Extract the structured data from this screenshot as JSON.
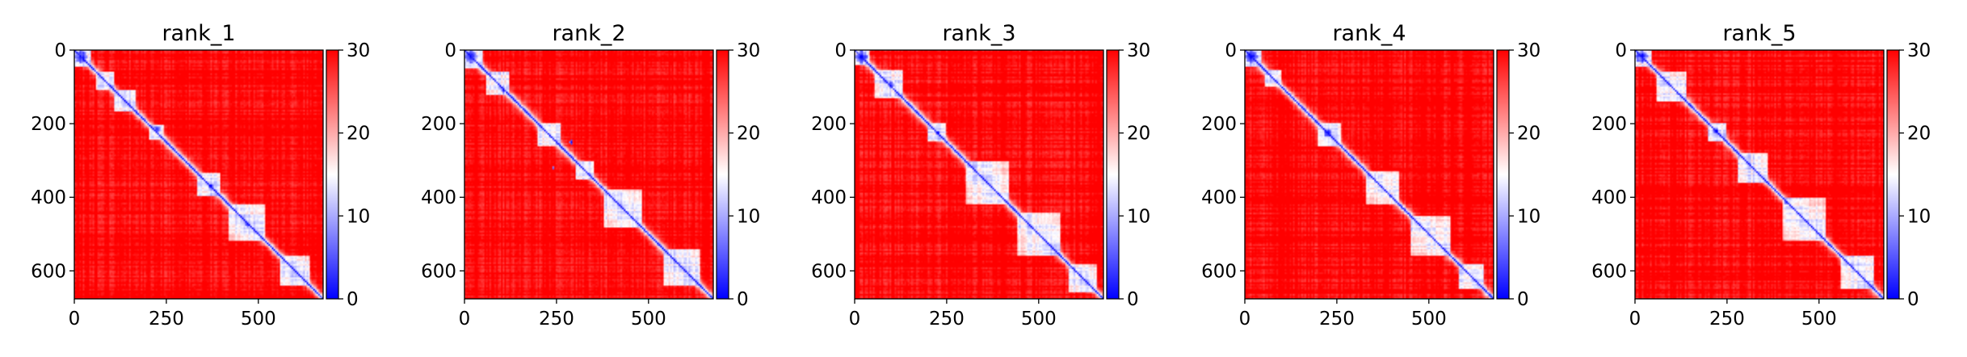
{
  "chart_data": [
    {
      "type": "heatmap",
      "title": "rank_1",
      "xticks": [
        "0",
        "250",
        "500"
      ],
      "yticks": [
        "0",
        "200",
        "400",
        "600"
      ],
      "xlim": [
        0,
        676
      ],
      "ylim": [
        676,
        0
      ],
      "colorbar": {
        "ticks": [
          "0",
          "10",
          "20",
          "30"
        ],
        "range": [
          0,
          30
        ],
        "colormap": [
          "#0000ff",
          "#ffffff",
          "#ff0000"
        ]
      },
      "domains": [
        [
          0,
          45
        ],
        [
          60,
          110
        ],
        [
          110,
          165
        ],
        [
          205,
          245
        ],
        [
          335,
          395
        ],
        [
          420,
          520
        ],
        [
          560,
          640
        ]
      ],
      "blobs": [
        [
          18,
          18,
          16
        ],
        [
          215,
          225,
          9
        ],
        [
          370,
          370,
          7
        ],
        [
          475,
          470,
          6
        ]
      ]
    },
    {
      "type": "heatmap",
      "title": "rank_2",
      "xticks": [
        "0",
        "250",
        "500"
      ],
      "yticks": [
        "0",
        "200",
        "400",
        "600"
      ],
      "xlim": [
        0,
        676
      ],
      "ylim": [
        676,
        0
      ],
      "colorbar": {
        "ticks": [
          "0",
          "10",
          "20",
          "30"
        ],
        "range": [
          0,
          30
        ],
        "colormap": [
          "#0000ff",
          "#ffffff",
          "#ff0000"
        ]
      },
      "domains": [
        [
          0,
          50
        ],
        [
          60,
          120
        ],
        [
          200,
          260
        ],
        [
          300,
          350
        ],
        [
          380,
          480
        ],
        [
          540,
          640
        ]
      ],
      "blobs": [
        [
          18,
          18,
          16
        ],
        [
          110,
          105,
          6
        ],
        [
          250,
          290,
          5
        ],
        [
          320,
          240,
          4
        ]
      ]
    },
    {
      "type": "heatmap",
      "title": "rank_3",
      "xticks": [
        "0",
        "250",
        "500"
      ],
      "yticks": [
        "0",
        "200",
        "400",
        "600"
      ],
      "xlim": [
        0,
        676
      ],
      "ylim": [
        676,
        0
      ],
      "colorbar": {
        "ticks": [
          "0",
          "10",
          "20",
          "30"
        ],
        "range": [
          0,
          30
        ],
        "colormap": [
          "#0000ff",
          "#ffffff",
          "#ff0000"
        ]
      },
      "domains": [
        [
          0,
          40
        ],
        [
          55,
          130
        ],
        [
          200,
          250
        ],
        [
          300,
          420
        ],
        [
          440,
          560
        ],
        [
          580,
          660
        ]
      ],
      "blobs": [
        [
          18,
          18,
          16
        ],
        [
          95,
          100,
          8
        ],
        [
          225,
          225,
          6
        ]
      ]
    },
    {
      "type": "heatmap",
      "title": "rank_4",
      "xticks": [
        "0",
        "250",
        "500"
      ],
      "yticks": [
        "0",
        "200",
        "400",
        "600"
      ],
      "xlim": [
        0,
        676
      ],
      "ylim": [
        676,
        0
      ],
      "colorbar": {
        "ticks": [
          "0",
          "10",
          "20",
          "30"
        ],
        "range": [
          0,
          30
        ],
        "colormap": [
          "#0000ff",
          "#ffffff",
          "#ff0000"
        ]
      },
      "domains": [
        [
          0,
          45
        ],
        [
          55,
          100
        ],
        [
          200,
          260
        ],
        [
          330,
          420
        ],
        [
          450,
          560
        ],
        [
          580,
          650
        ]
      ],
      "blobs": [
        [
          18,
          18,
          16
        ],
        [
          225,
          225,
          11
        ],
        [
          395,
          395,
          5
        ]
      ]
    },
    {
      "type": "heatmap",
      "title": "rank_5",
      "xticks": [
        "0",
        "250",
        "500"
      ],
      "yticks": [
        "0",
        "200",
        "400",
        "600"
      ],
      "xlim": [
        0,
        676
      ],
      "ylim": [
        676,
        0
      ],
      "colorbar": {
        "ticks": [
          "0",
          "10",
          "20",
          "30"
        ],
        "range": [
          0,
          30
        ],
        "colormap": [
          "#0000ff",
          "#ffffff",
          "#ff0000"
        ]
      },
      "domains": [
        [
          0,
          45
        ],
        [
          60,
          140
        ],
        [
          200,
          250
        ],
        [
          280,
          360
        ],
        [
          400,
          520
        ],
        [
          560,
          650
        ]
      ],
      "blobs": [
        [
          18,
          18,
          16
        ],
        [
          220,
          220,
          7
        ],
        [
          415,
          410,
          5
        ]
      ]
    }
  ]
}
